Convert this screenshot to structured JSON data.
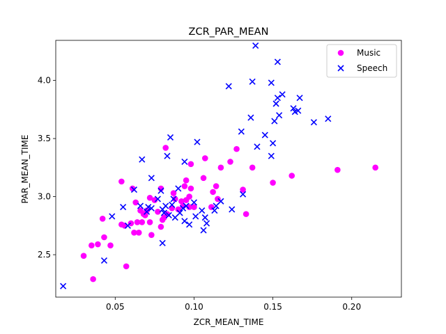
{
  "chart_data": {
    "type": "scatter",
    "title": "ZCR_PAR_MEAN",
    "xlabel": "ZCR_MEAN_TIME",
    "ylabel": "PAR_MEAN_TIME",
    "xlim": [
      0.0123,
      0.2315
    ],
    "ylim": [
      2.135,
      4.345
    ],
    "xticks": [
      0.05,
      0.1,
      0.15,
      0.2
    ],
    "xtick_labels": [
      "0.05",
      "0.10",
      "0.15",
      "0.20"
    ],
    "yticks": [
      2.5,
      3.0,
      3.5,
      4.0
    ],
    "ytick_labels": [
      "2.5",
      "3.0",
      "3.5",
      "4.0"
    ],
    "grid": false,
    "legend_position": "top-right",
    "series": [
      {
        "name": "Music",
        "marker": "circle",
        "color": "#ff00ff",
        "points": [
          [
            0.03,
            2.49
          ],
          [
            0.035,
            2.58
          ],
          [
            0.036,
            2.29
          ],
          [
            0.039,
            2.59
          ],
          [
            0.042,
            2.81
          ],
          [
            0.043,
            2.65
          ],
          [
            0.047,
            2.58
          ],
          [
            0.054,
            2.76
          ],
          [
            0.054,
            3.13
          ],
          [
            0.056,
            2.75
          ],
          [
            0.057,
            2.4
          ],
          [
            0.06,
            2.77
          ],
          [
            0.061,
            3.07
          ],
          [
            0.062,
            2.69
          ],
          [
            0.063,
            2.95
          ],
          [
            0.064,
            2.78
          ],
          [
            0.065,
            2.69
          ],
          [
            0.066,
            2.88
          ],
          [
            0.067,
            2.78
          ],
          [
            0.068,
            2.85
          ],
          [
            0.069,
            2.84
          ],
          [
            0.07,
            2.88
          ],
          [
            0.072,
            2.99
          ],
          [
            0.072,
            2.78
          ],
          [
            0.073,
            2.67
          ],
          [
            0.075,
            2.97
          ],
          [
            0.077,
            2.87
          ],
          [
            0.079,
            2.74
          ],
          [
            0.079,
            3.07
          ],
          [
            0.08,
            2.8
          ],
          [
            0.081,
            2.82
          ],
          [
            0.082,
            3.42
          ],
          [
            0.083,
            2.85
          ],
          [
            0.086,
            2.9
          ],
          [
            0.087,
            3.03
          ],
          [
            0.088,
            2.98
          ],
          [
            0.09,
            2.89
          ],
          [
            0.092,
            2.96
          ],
          [
            0.093,
            2.92
          ],
          [
            0.094,
            3.09
          ],
          [
            0.095,
            3.14
          ],
          [
            0.095,
            2.97
          ],
          [
            0.097,
            2.91
          ],
          [
            0.097,
            3.0
          ],
          [
            0.098,
            3.07
          ],
          [
            0.098,
            3.28
          ],
          [
            0.1,
            2.91
          ],
          [
            0.106,
            3.16
          ],
          [
            0.107,
            3.33
          ],
          [
            0.111,
            2.91
          ],
          [
            0.112,
            3.04
          ],
          [
            0.114,
            3.09
          ],
          [
            0.115,
            2.98
          ],
          [
            0.117,
            3.25
          ],
          [
            0.123,
            3.3
          ],
          [
            0.127,
            3.41
          ],
          [
            0.131,
            3.06
          ],
          [
            0.133,
            2.85
          ],
          [
            0.137,
            3.25
          ],
          [
            0.15,
            3.12
          ],
          [
            0.162,
            3.18
          ],
          [
            0.191,
            3.23
          ],
          [
            0.215,
            3.25
          ]
        ]
      },
      {
        "name": "Speech",
        "marker": "x",
        "color": "#0000ff",
        "points": [
          [
            0.017,
            2.23
          ],
          [
            0.043,
            2.45
          ],
          [
            0.048,
            2.83
          ],
          [
            0.055,
            2.91
          ],
          [
            0.058,
            2.75
          ],
          [
            0.062,
            3.06
          ],
          [
            0.066,
            2.92
          ],
          [
            0.067,
            3.32
          ],
          [
            0.07,
            2.87
          ],
          [
            0.071,
            2.91
          ],
          [
            0.073,
            2.9
          ],
          [
            0.073,
            3.16
          ],
          [
            0.077,
            2.98
          ],
          [
            0.079,
            3.05
          ],
          [
            0.08,
            2.6
          ],
          [
            0.08,
            2.89
          ],
          [
            0.081,
            2.86
          ],
          [
            0.082,
            2.92
          ],
          [
            0.083,
            3.35
          ],
          [
            0.084,
            2.84
          ],
          [
            0.085,
            3.51
          ],
          [
            0.086,
            2.93
          ],
          [
            0.087,
            2.98
          ],
          [
            0.088,
            2.82
          ],
          [
            0.09,
            3.07
          ],
          [
            0.091,
            2.86
          ],
          [
            0.093,
            2.9
          ],
          [
            0.094,
            3.3
          ],
          [
            0.094,
            2.79
          ],
          [
            0.095,
            2.92
          ],
          [
            0.097,
            2.76
          ],
          [
            0.1,
            2.95
          ],
          [
            0.101,
            2.83
          ],
          [
            0.102,
            3.47
          ],
          [
            0.105,
            2.88
          ],
          [
            0.106,
            2.71
          ],
          [
            0.107,
            2.82
          ],
          [
            0.108,
            2.77
          ],
          [
            0.113,
            2.88
          ],
          [
            0.114,
            2.92
          ],
          [
            0.117,
            2.96
          ],
          [
            0.122,
            3.95
          ],
          [
            0.124,
            2.89
          ],
          [
            0.13,
            3.56
          ],
          [
            0.131,
            3.02
          ],
          [
            0.136,
            3.68
          ],
          [
            0.137,
            3.99
          ],
          [
            0.139,
            4.3
          ],
          [
            0.14,
            3.43
          ],
          [
            0.145,
            3.53
          ],
          [
            0.149,
            3.98
          ],
          [
            0.149,
            3.35
          ],
          [
            0.15,
            3.46
          ],
          [
            0.151,
            3.65
          ],
          [
            0.152,
            3.8
          ],
          [
            0.153,
            3.85
          ],
          [
            0.153,
            4.16
          ],
          [
            0.154,
            3.7
          ],
          [
            0.156,
            3.88
          ],
          [
            0.163,
            3.76
          ],
          [
            0.164,
            3.73
          ],
          [
            0.166,
            3.74
          ],
          [
            0.167,
            3.85
          ],
          [
            0.176,
            3.64
          ],
          [
            0.185,
            3.67
          ]
        ]
      }
    ]
  }
}
